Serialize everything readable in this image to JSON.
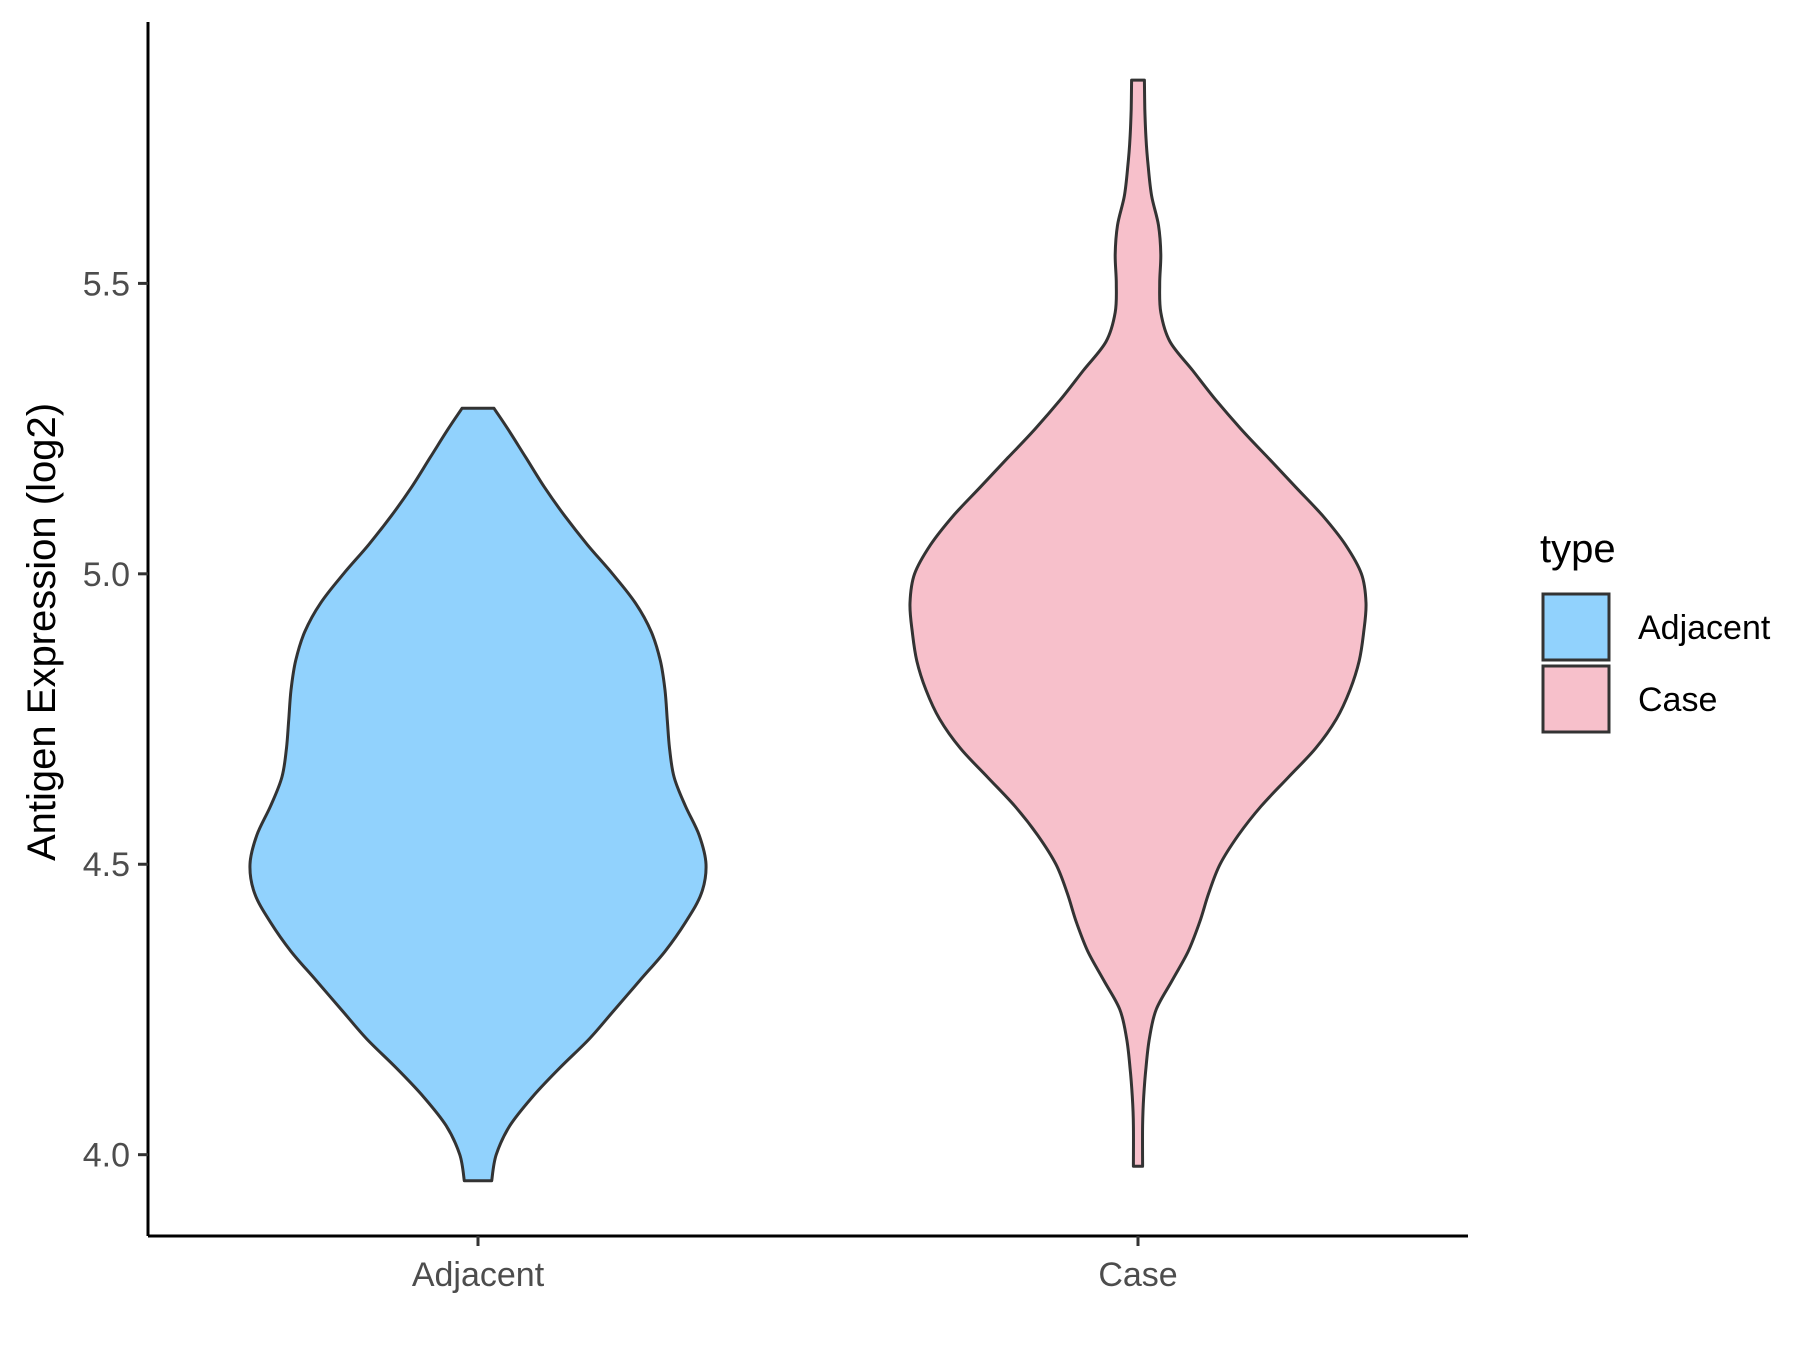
{
  "chart_data": {
    "type": "violin",
    "title": "",
    "xlabel": "",
    "ylabel": "Antigen Expression (log2)",
    "ylim": [
      3.86,
      5.95
    ],
    "yticks": [
      "4.0",
      "4.5",
      "5.0",
      "5.5"
    ],
    "ytick_values": [
      4.0,
      4.5,
      5.0,
      5.5
    ],
    "categories": [
      "Adjacent",
      "Case"
    ],
    "legend": {
      "title": "type",
      "position": "right",
      "items": [
        {
          "label": "Adjacent",
          "color": "#91d2fd"
        },
        {
          "label": "Case",
          "color": "#f7c0cb"
        }
      ]
    },
    "series": [
      {
        "name": "Adjacent",
        "color": "#91d2fd",
        "density": [
          [
            3.955,
            0.06
          ],
          [
            4.0,
            0.08
          ],
          [
            4.05,
            0.14
          ],
          [
            4.1,
            0.24
          ],
          [
            4.15,
            0.36
          ],
          [
            4.2,
            0.49
          ],
          [
            4.25,
            0.6
          ],
          [
            4.3,
            0.71
          ],
          [
            4.35,
            0.82
          ],
          [
            4.4,
            0.91
          ],
          [
            4.45,
            0.98
          ],
          [
            4.5,
            1.0
          ],
          [
            4.55,
            0.97
          ],
          [
            4.6,
            0.91
          ],
          [
            4.65,
            0.86
          ],
          [
            4.7,
            0.84
          ],
          [
            4.75,
            0.83
          ],
          [
            4.8,
            0.82
          ],
          [
            4.85,
            0.8
          ],
          [
            4.9,
            0.76
          ],
          [
            4.95,
            0.69
          ],
          [
            5.0,
            0.59
          ],
          [
            5.05,
            0.48
          ],
          [
            5.1,
            0.38
          ],
          [
            5.15,
            0.29
          ],
          [
            5.2,
            0.21
          ],
          [
            5.25,
            0.13
          ],
          [
            5.285,
            0.07
          ]
        ]
      },
      {
        "name": "Case",
        "color": "#f7c0cb",
        "density": [
          [
            3.98,
            0.02
          ],
          [
            4.05,
            0.02
          ],
          [
            4.1,
            0.025
          ],
          [
            4.15,
            0.035
          ],
          [
            4.2,
            0.05
          ],
          [
            4.25,
            0.08
          ],
          [
            4.3,
            0.15
          ],
          [
            4.35,
            0.22
          ],
          [
            4.4,
            0.27
          ],
          [
            4.45,
            0.31
          ],
          [
            4.5,
            0.36
          ],
          [
            4.55,
            0.44
          ],
          [
            4.6,
            0.54
          ],
          [
            4.65,
            0.66
          ],
          [
            4.7,
            0.78
          ],
          [
            4.75,
            0.87
          ],
          [
            4.8,
            0.93
          ],
          [
            4.85,
            0.97
          ],
          [
            4.9,
            0.99
          ],
          [
            4.95,
            1.0
          ],
          [
            5.0,
            0.98
          ],
          [
            5.05,
            0.91
          ],
          [
            5.1,
            0.81
          ],
          [
            5.15,
            0.69
          ],
          [
            5.2,
            0.57
          ],
          [
            5.25,
            0.45
          ],
          [
            5.3,
            0.34
          ],
          [
            5.35,
            0.24
          ],
          [
            5.4,
            0.14
          ],
          [
            5.45,
            0.1
          ],
          [
            5.5,
            0.095
          ],
          [
            5.55,
            0.1
          ],
          [
            5.6,
            0.09
          ],
          [
            5.65,
            0.06
          ],
          [
            5.7,
            0.045
          ],
          [
            5.75,
            0.035
          ],
          [
            5.8,
            0.03
          ],
          [
            5.85,
            0.028
          ]
        ]
      }
    ]
  }
}
